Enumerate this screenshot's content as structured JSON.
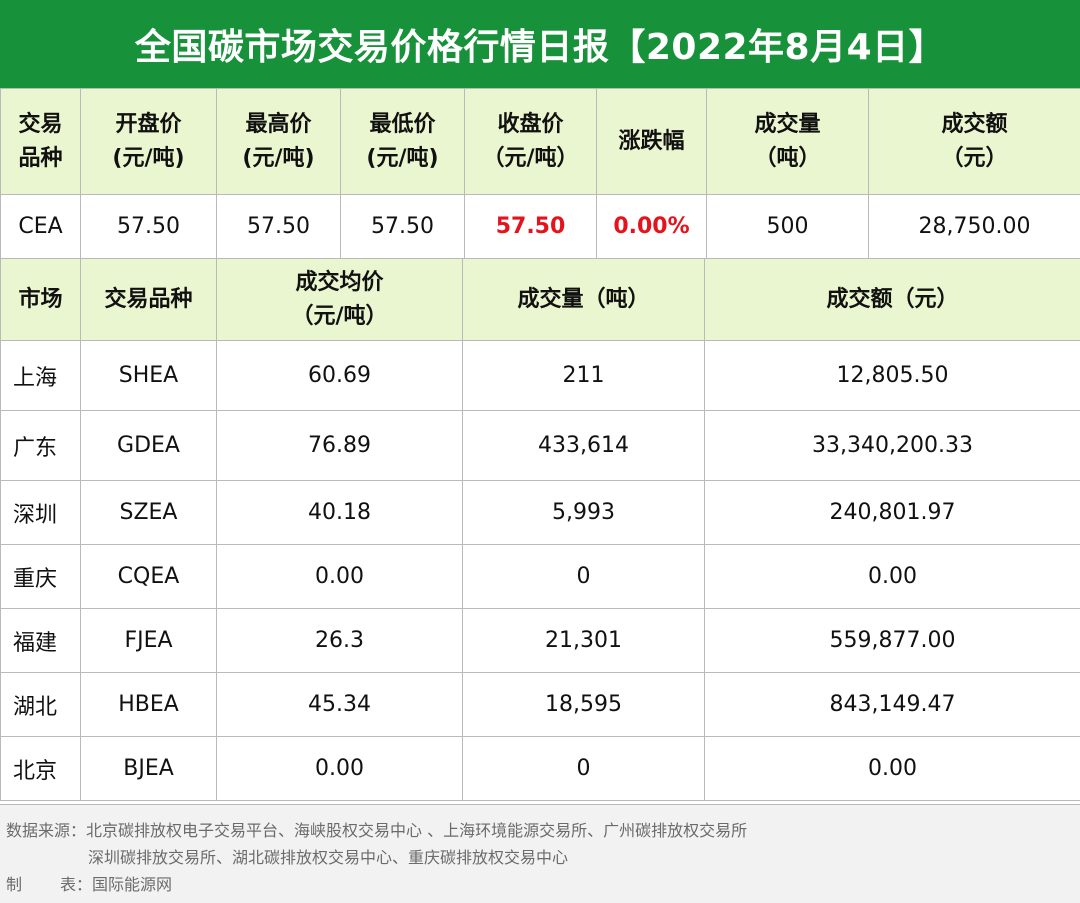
{
  "title": "全国碳市场交易价格行情日报【2022年8月4日】",
  "top_table": {
    "headers": [
      {
        "l1": "交易",
        "l2": "品种"
      },
      {
        "l1": "开盘价",
        "l2": "(元/吨)"
      },
      {
        "l1": "最高价",
        "l2": "(元/吨)"
      },
      {
        "l1": "最低价",
        "l2": "(元/吨)"
      },
      {
        "l1": "收盘价",
        "l2": "（元/吨）"
      },
      {
        "l1": "涨跌幅",
        "l2": ""
      },
      {
        "l1": "成交量",
        "l2": "（吨）"
      },
      {
        "l1": "成交额",
        "l2": "（元）"
      }
    ],
    "row": {
      "variety": "CEA",
      "open": "57.50",
      "high": "57.50",
      "low": "57.50",
      "close": "57.50",
      "change": "0.00%",
      "volume": "500",
      "amount": "28,750.00"
    }
  },
  "bottom_table": {
    "headers": {
      "market": "市场",
      "variety": "交易品种",
      "avg_price_l1": "成交均价",
      "avg_price_l2": "（元/吨）",
      "volume": "成交量（吨）",
      "amount": "成交额（元）"
    },
    "rows": [
      {
        "market": "上海",
        "variety": "SHEA",
        "avg_price": "60.69",
        "volume": "211",
        "amount": "12,805.50"
      },
      {
        "market": "广东",
        "variety": "GDEA",
        "avg_price": "76.89",
        "volume": "433,614",
        "amount": "33,340,200.33"
      },
      {
        "market": "深圳",
        "variety": "SZEA",
        "avg_price": "40.18",
        "volume": "5,993",
        "amount": "240,801.97"
      },
      {
        "market": "重庆",
        "variety": "CQEA",
        "avg_price": "0.00",
        "volume": "0",
        "amount": "0.00"
      },
      {
        "market": "福建",
        "variety": "FJEA",
        "avg_price": "26.3",
        "volume": "21,301",
        "amount": "559,877.00"
      },
      {
        "market": "湖北",
        "variety": "HBEA",
        "avg_price": "45.34",
        "volume": "18,595",
        "amount": "843,149.47"
      },
      {
        "market": "北京",
        "variety": "BJEA",
        "avg_price": "0.00",
        "volume": "0",
        "amount": "0.00"
      }
    ]
  },
  "footer": {
    "source_line1": "数据来源：北京碳排放权电子交易平台、海峡股权交易中心 、上海环境能源交易所、广州碳排放权交易所",
    "source_line2": "深圳碳排放交易所、湖北碳排放权交易中心、重庆碳排放权交易中心",
    "maker_label_1": "制",
    "maker_label_2": "表：",
    "maker": "国际能源网"
  },
  "colors": {
    "title_bg": "#17913a",
    "header_bg": "#eaf6cf",
    "highlight_red": "#e5131b",
    "footer_bg": "#f2f2f2"
  }
}
